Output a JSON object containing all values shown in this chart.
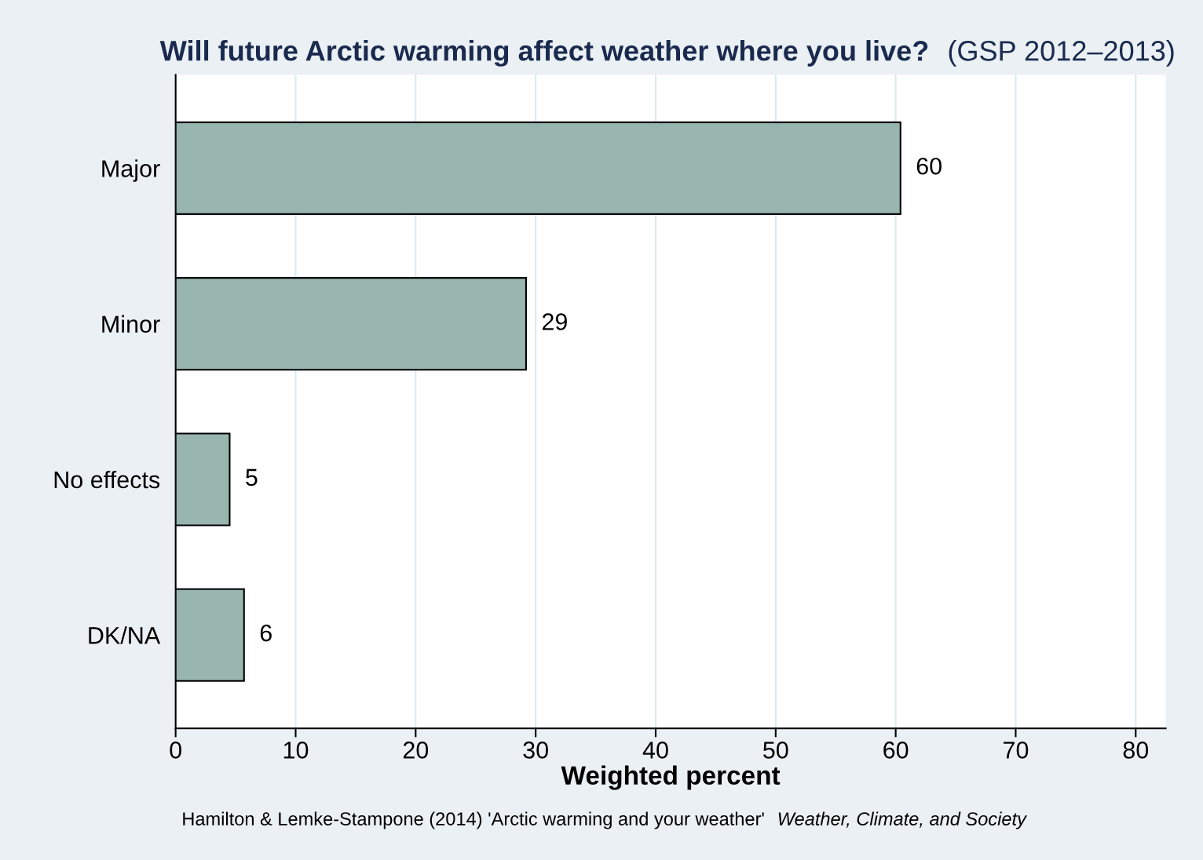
{
  "chart_data": {
    "type": "bar",
    "orientation": "horizontal",
    "title": "Will future Arctic warming affect weather where you live?",
    "subtitle": "(GSP 2012–2013)",
    "xlabel": "Weighted percent",
    "categories": [
      "Major",
      "Minor",
      "No effects",
      "DK/NA"
    ],
    "values": [
      60.4,
      29.2,
      4.5,
      5.7
    ],
    "value_labels": [
      "60",
      "29",
      "5",
      "6"
    ],
    "color": "#98b5ae",
    "xlim": [
      0,
      82.5
    ],
    "xticks": [
      0,
      10,
      20,
      30,
      40,
      50,
      60,
      70,
      80
    ],
    "grid": "x",
    "annotations": [
      "Hamilton & Lemke-Stampone (2014) 'Arctic warming and your weather'",
      "Weather, Climate, and Society"
    ]
  }
}
